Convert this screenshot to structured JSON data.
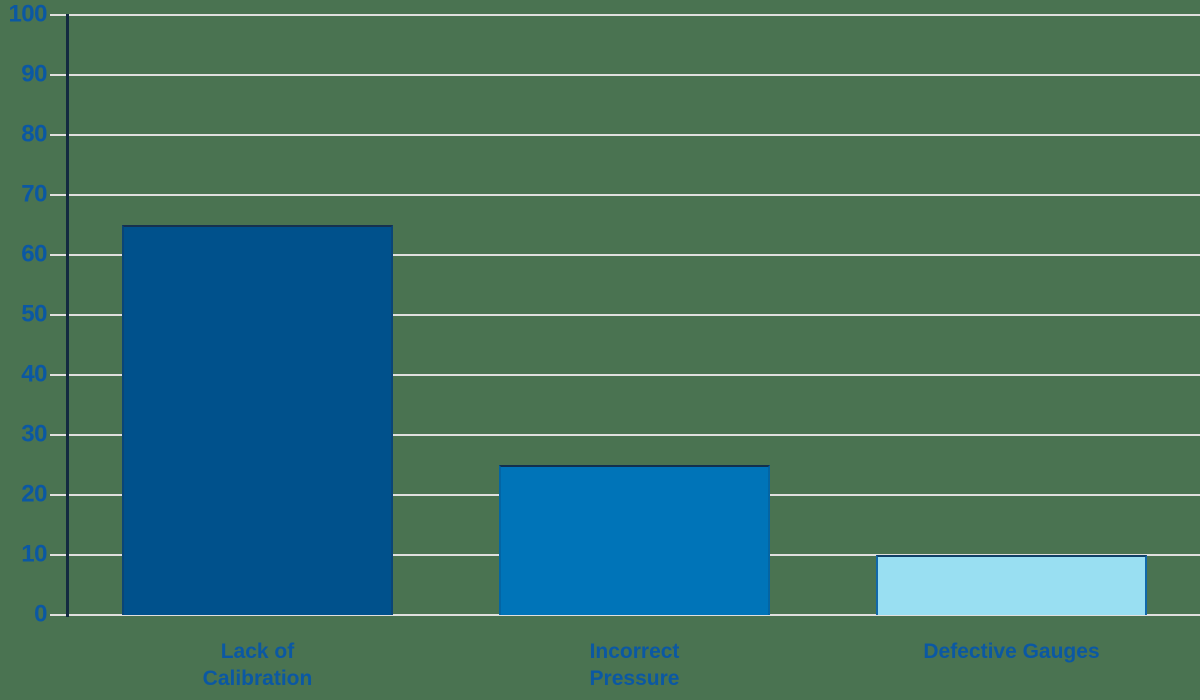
{
  "colors": {
    "background": "#4A7351",
    "gridline": "#E0E0DE",
    "axis_line": "#132A40",
    "label_text": "#0B58A3"
  },
  "chart_data": {
    "type": "bar",
    "categories": [
      "Lack of Calibration",
      "Incorrect Pressure",
      "Defective Gauges"
    ],
    "values": [
      65,
      25,
      10
    ],
    "ylim": [
      0,
      100
    ],
    "yticks": [
      100,
      90,
      80,
      70,
      60,
      50,
      40,
      30,
      20,
      10,
      0
    ],
    "xlabel": "",
    "ylabel": "",
    "grid": "horizontal-white-gridlines",
    "legend": "none",
    "bars": [
      {
        "label": "Lack of Calibration",
        "display_label": "Lack of\nCalibration",
        "value": 65,
        "fill": "#00518C",
        "edge_top": "#16314F",
        "edge_side": "#0A4577"
      },
      {
        "label": "Incorrect Pressure",
        "display_label": "Incorrect\nPressure",
        "value": 25,
        "fill": "#0074B8",
        "edge_top": "#11304F",
        "edge_side": "#0465A4"
      },
      {
        "label": "Defective Gauges",
        "display_label": "Defective Gauges",
        "value": 10,
        "fill": "#99DFF2",
        "edge_top": "#114066",
        "edge_side": "#1168A9"
      }
    ]
  }
}
